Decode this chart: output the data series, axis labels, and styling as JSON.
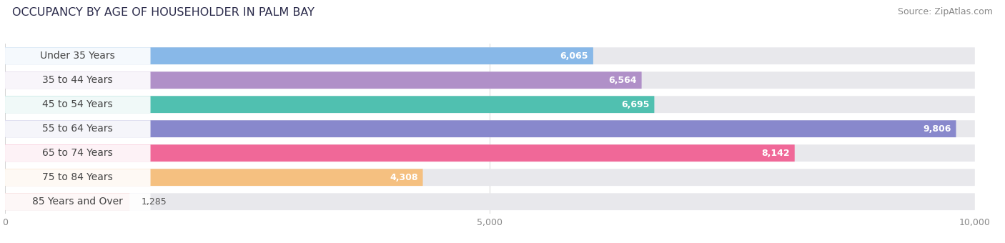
{
  "title": "OCCUPANCY BY AGE OF HOUSEHOLDER IN PALM BAY",
  "source": "Source: ZipAtlas.com",
  "categories": [
    "Under 35 Years",
    "35 to 44 Years",
    "45 to 54 Years",
    "55 to 64 Years",
    "65 to 74 Years",
    "75 to 84 Years",
    "85 Years and Over"
  ],
  "values": [
    6065,
    6564,
    6695,
    9806,
    8142,
    4308,
    1285
  ],
  "bar_colors": [
    "#88b8e8",
    "#b090c8",
    "#50c0b0",
    "#8888cc",
    "#f06898",
    "#f5c080",
    "#f0a8a8"
  ],
  "bar_bg_color": "#e8e8ec",
  "text_color_dark": "#444444",
  "xlim": [
    0,
    10000
  ],
  "xticks": [
    0,
    5000,
    10000
  ],
  "xtick_labels": [
    "0",
    "5,000",
    "10,000"
  ],
  "background_color": "#ffffff",
  "title_fontsize": 11.5,
  "source_fontsize": 9,
  "label_fontsize": 10,
  "value_fontsize": 9,
  "bar_height": 0.7,
  "figsize": [
    14.06,
    3.4
  ],
  "dpi": 100
}
